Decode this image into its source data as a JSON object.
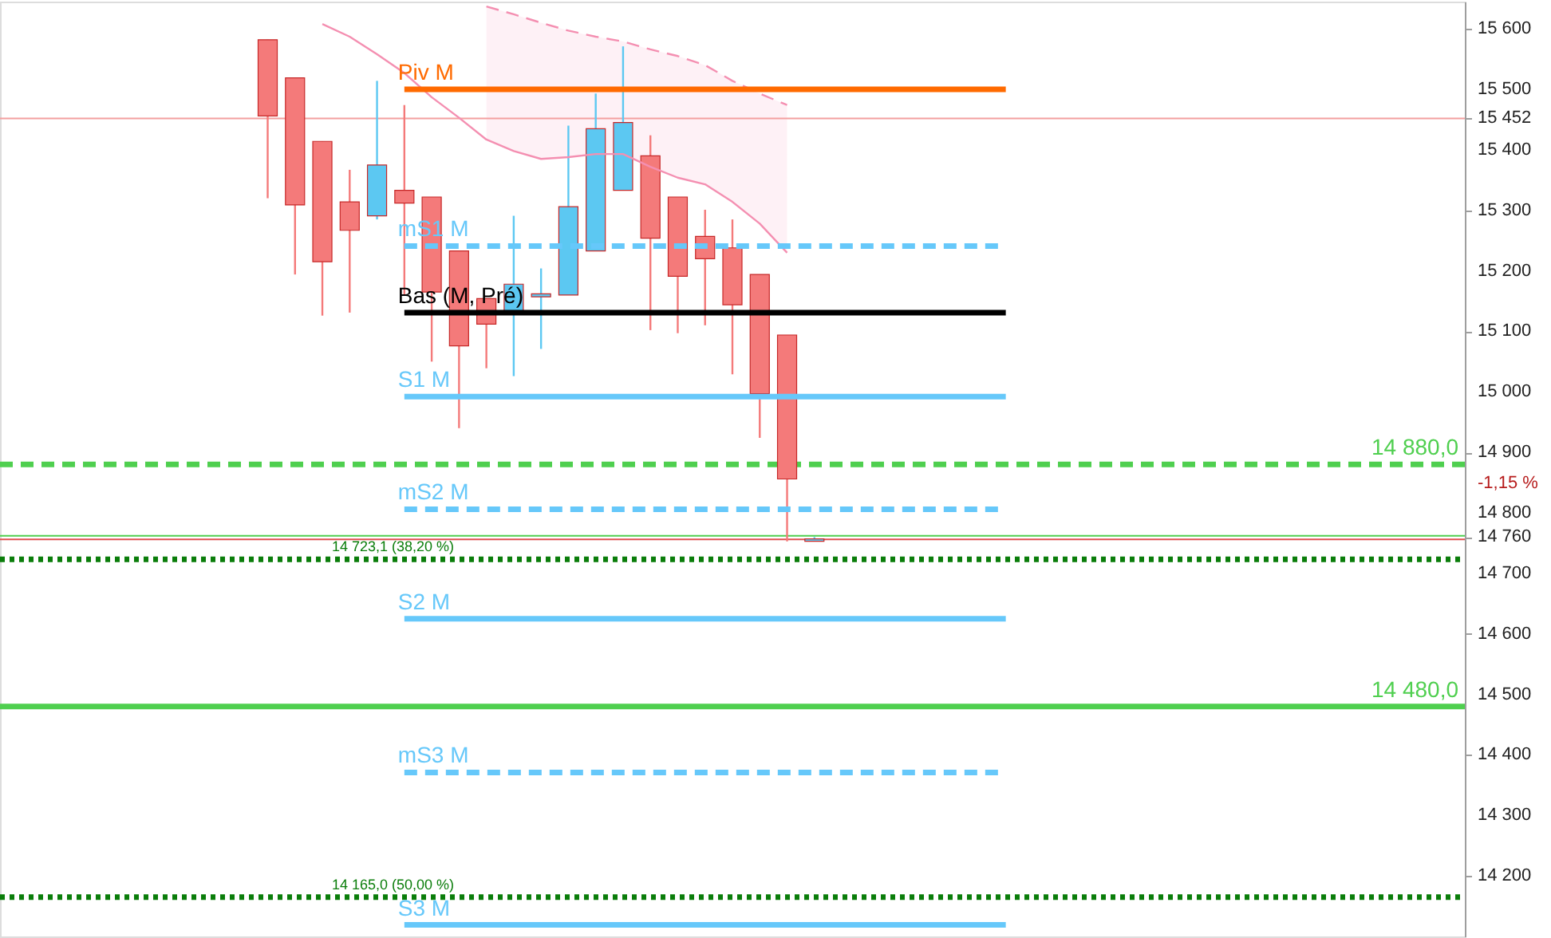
{
  "chart_data": {
    "type": "candlestick",
    "categories": [
      null,
      null,
      null,
      null,
      null,
      null,
      null,
      null,
      null,
      null,
      null,
      null,
      null,
      null,
      null,
      null,
      null,
      null,
      null,
      null,
      null,
      null,
      null,
      null,
      null,
      null,
      null,
      null,
      null,
      null,
      null,
      null,
      null,
      null,
      null,
      null,
      null,
      null,
      null,
      null,
      null,
      null,
      null,
      null,
      null,
      null,
      null,
      null,
      null,
      null,
      null,
      null,
      null
    ],
    "ohlc": [
      null,
      null,
      null,
      null,
      null,
      null,
      null,
      null,
      null,
      [
        15582,
        15582,
        15320,
        15456
      ],
      [
        15519,
        15519,
        15194,
        15309
      ],
      [
        15414,
        15414,
        15126,
        15215
      ],
      [
        15314,
        15367,
        15131,
        15267
      ],
      [
        15291,
        15514,
        15285,
        15375
      ],
      [
        15333,
        15474,
        15160,
        15312
      ],
      [
        15322,
        15322,
        15050,
        15165
      ],
      [
        15233,
        15233,
        14940,
        15076
      ],
      [
        15154,
        15154,
        15039,
        15112
      ],
      [
        15133,
        15291,
        15026,
        15178
      ],
      [
        15157,
        15204,
        15071,
        15162
      ],
      [
        15160,
        15440,
        15160,
        15306
      ],
      [
        15233,
        15493,
        15233,
        15435
      ],
      [
        15333,
        15571,
        15333,
        15445
      ],
      [
        15390,
        15424,
        15102,
        15254
      ],
      [
        15322,
        15322,
        15097,
        15191
      ],
      [
        15257,
        15301,
        15110,
        15220
      ],
      [
        15238,
        15285,
        15029,
        15144
      ],
      [
        15194,
        15194,
        14924,
        14997
      ],
      [
        15094,
        15094,
        14753,
        14856
      ],
      [
        14753,
        14760,
        14753,
        14757
      ],
      null,
      null,
      null,
      null,
      null,
      null,
      null,
      null,
      null,
      null,
      null,
      null,
      null,
      null,
      null,
      null,
      null,
      null,
      null,
      null,
      null,
      null,
      null
    ],
    "colors": [
      null,
      null,
      null,
      null,
      null,
      null,
      null,
      null,
      null,
      "#f47a7a",
      "#f47a7a",
      "#f47a7a",
      "#f47a7a",
      "#5cc8f2",
      "#f47a7a",
      "#f47a7a",
      "#f47a7a",
      "#f47a7a",
      "#5cc8f2",
      "#5cc8f2",
      "#5cc8f2",
      "#5cc8f2",
      "#5cc8f2",
      "#f47a7a",
      "#f47a7a",
      "#f47a7a",
      "#f47a7a",
      "#f47a7a",
      "#f47a7a",
      "#5cc8f2",
      null,
      null,
      null,
      null,
      null,
      null,
      null,
      null,
      null,
      null,
      null,
      null,
      null,
      null,
      null,
      null,
      null,
      null,
      null,
      null,
      null,
      null,
      null
    ],
    "series": [
      {
        "type": "line",
        "color": "#f48fb1",
        "line_style": "solid",
        "values": [
          null,
          null,
          null,
          null,
          null,
          null,
          null,
          null,
          null,
          null,
          null,
          15608,
          15587,
          15558,
          15527,
          15487,
          15453,
          15417,
          15398,
          15385,
          15388,
          15393,
          15393,
          15372,
          15354,
          15343,
          15314,
          15278,
          15230,
          null,
          null,
          null,
          null,
          null,
          null,
          null,
          null,
          null,
          null,
          null,
          null,
          null,
          null,
          null,
          null,
          null,
          null,
          null,
          null,
          null,
          null,
          null,
          null
        ]
      },
      {
        "type": "line",
        "color": "#f48fb1",
        "line_style": "dashed",
        "values": [
          null,
          null,
          null,
          null,
          null,
          null,
          null,
          null,
          null,
          null,
          null,
          null,
          null,
          null,
          null,
          null,
          null,
          15637,
          15624,
          15610,
          15597,
          15587,
          15579,
          15566,
          15555,
          15540,
          15514,
          15493,
          15474,
          null,
          null,
          null,
          null,
          null,
          null,
          null,
          null,
          null,
          null,
          null,
          null,
          null,
          null,
          null,
          null,
          null,
          null,
          null,
          null,
          null,
          null,
          null,
          null
        ],
        "lower": [
          null,
          null,
          null,
          null,
          null,
          null,
          null,
          null,
          null,
          null,
          null,
          null,
          null,
          null,
          null,
          null,
          null,
          15417,
          15398,
          15385,
          15388,
          15393,
          15393,
          15372,
          15354,
          15343,
          15314,
          15278,
          15230,
          null,
          null,
          null,
          null,
          null,
          null,
          null,
          null,
          null,
          null,
          null,
          null,
          null,
          null,
          null,
          null,
          null,
          null,
          null,
          null,
          null,
          null,
          null,
          null
        ],
        "upper": [
          null,
          null,
          null,
          null,
          null,
          null,
          null,
          null,
          null,
          null,
          null,
          null,
          null,
          null,
          null,
          null,
          null,
          15637,
          15624,
          15610,
          15597,
          15587,
          15579,
          15566,
          15555,
          15540,
          15514,
          15493,
          15474,
          null,
          null,
          null,
          null,
          null,
          null,
          null,
          null,
          null,
          null,
          null,
          null,
          null,
          null,
          null,
          null,
          null,
          null,
          null,
          null,
          null,
          null,
          null,
          null
        ]
      },
      {
        "type": "line",
        "name": "Piv M",
        "color": "#ff6a00",
        "line_style": "solid",
        "values": [
          null,
          null,
          null,
          null,
          null,
          null,
          null,
          null,
          null,
          null,
          null,
          null,
          null,
          null,
          15500,
          15500,
          15500,
          15500,
          15500,
          15500,
          15500,
          15500,
          15500,
          15500,
          15500,
          15500,
          15500,
          15500,
          15500,
          15500,
          15500,
          15500,
          15500,
          15500,
          15500,
          15500,
          15500,
          null,
          null,
          null,
          null,
          null,
          null,
          null,
          null,
          null,
          null,
          null,
          null,
          null,
          null,
          null,
          null
        ]
      },
      {
        "type": "line",
        "name": "mS1 M",
        "color": "#66c8fa",
        "line_style": "dashed",
        "values": [
          null,
          null,
          null,
          null,
          null,
          null,
          null,
          null,
          null,
          null,
          null,
          null,
          null,
          null,
          15241,
          15241,
          15241,
          15241,
          15241,
          15241,
          15241,
          15241,
          15241,
          15241,
          15241,
          15241,
          15241,
          15241,
          15241,
          15241,
          15241,
          15241,
          15241,
          15241,
          15241,
          15241,
          15241,
          null,
          null,
          null,
          null,
          null,
          null,
          null,
          null,
          null,
          null,
          null,
          null,
          null,
          null,
          null,
          null
        ]
      },
      {
        "type": "line",
        "name": "Bas (M, Pré)",
        "color": "#000000",
        "line_style": "solid",
        "values": [
          null,
          null,
          null,
          null,
          null,
          null,
          null,
          null,
          null,
          null,
          null,
          null,
          null,
          null,
          15131,
          15131,
          15131,
          15131,
          15131,
          15131,
          15131,
          15131,
          15131,
          15131,
          15131,
          15131,
          15131,
          15131,
          15131,
          15131,
          15131,
          15131,
          15131,
          15131,
          15131,
          15131,
          15131,
          null,
          null,
          null,
          null,
          null,
          null,
          null,
          null,
          null,
          null,
          null,
          null,
          null,
          null,
          null,
          null
        ]
      },
      {
        "type": "line",
        "name": "S1 M",
        "color": "#66c8fa",
        "line_style": "solid",
        "values": [
          null,
          null,
          null,
          null,
          null,
          null,
          null,
          null,
          null,
          null,
          null,
          null,
          null,
          null,
          14992,
          14992,
          14992,
          14992,
          14992,
          14992,
          14992,
          14992,
          14992,
          14992,
          14992,
          14992,
          14992,
          14992,
          14992,
          14992,
          14992,
          14992,
          14992,
          14992,
          14992,
          14992,
          14992,
          null,
          null,
          null,
          null,
          null,
          null,
          null,
          null,
          null,
          null,
          null,
          null,
          null,
          null,
          null,
          null
        ]
      },
      {
        "type": "line",
        "name": "mS2 M",
        "color": "#66c8fa",
        "line_style": "dashed",
        "values": [
          null,
          null,
          null,
          null,
          null,
          null,
          null,
          null,
          null,
          null,
          null,
          null,
          null,
          null,
          14806,
          14806,
          14806,
          14806,
          14806,
          14806,
          14806,
          14806,
          14806,
          14806,
          14806,
          14806,
          14806,
          14806,
          14806,
          14806,
          14806,
          14806,
          14806,
          14806,
          14806,
          14806,
          14806,
          null,
          null,
          null,
          null,
          null,
          null,
          null,
          null,
          null,
          null,
          null,
          null,
          null,
          null,
          null,
          null
        ]
      },
      {
        "type": "line",
        "name": "S2 M",
        "color": "#66c8fa",
        "line_style": "solid",
        "values": [
          null,
          null,
          null,
          null,
          null,
          null,
          null,
          null,
          null,
          null,
          null,
          null,
          null,
          null,
          14625,
          14625,
          14625,
          14625,
          14625,
          14625,
          14625,
          14625,
          14625,
          14625,
          14625,
          14625,
          14625,
          14625,
          14625,
          14625,
          14625,
          14625,
          14625,
          14625,
          14625,
          14625,
          14625,
          null,
          null,
          null,
          null,
          null,
          null,
          null,
          null,
          null,
          null,
          null,
          null,
          null,
          null,
          null,
          null
        ]
      },
      {
        "type": "line",
        "name": "mS3 M",
        "color": "#66c8fa",
        "line_style": "dashed",
        "values": [
          null,
          null,
          null,
          null,
          null,
          null,
          null,
          null,
          null,
          null,
          null,
          null,
          null,
          null,
          14371,
          14371,
          14371,
          14371,
          14371,
          14371,
          14371,
          14371,
          14371,
          14371,
          14371,
          14371,
          14371,
          14371,
          14371,
          14371,
          14371,
          14371,
          14371,
          14371,
          14371,
          14371,
          14371,
          null,
          null,
          null,
          null,
          null,
          null,
          null,
          null,
          null,
          null,
          null,
          null,
          null,
          null,
          null,
          null
        ]
      },
      {
        "type": "line",
        "name": "S3 M",
        "color": "#66c8fa",
        "line_style": "solid",
        "values": [
          null,
          null,
          null,
          null,
          null,
          null,
          null,
          null,
          null,
          null,
          null,
          null,
          null,
          null,
          14119,
          14119,
          14119,
          14119,
          14119,
          14119,
          14119,
          14119,
          14119,
          14119,
          14119,
          14119,
          14119,
          14119,
          14119,
          14119,
          14119,
          14119,
          14119,
          14119,
          14119,
          14119,
          14119,
          null,
          null,
          null,
          null,
          null,
          null,
          null,
          null,
          null,
          null,
          null,
          null,
          null,
          null,
          null,
          null
        ]
      }
    ],
    "ref_lines": [
      {
        "axis": "y",
        "value": 14880,
        "label": "14 880,0",
        "color": "#4fcf4f",
        "line_style": "dashed"
      },
      {
        "axis": "y",
        "value": 14723.1,
        "label": "14 723,1 (38,20 %)",
        "color": "#0a7d0a",
        "line_style": "dotted"
      },
      {
        "axis": "y",
        "value": 14480,
        "label": "14 480,0",
        "color": "#4fcf4f",
        "line_style": "solid"
      },
      {
        "axis": "y",
        "value": 14165,
        "label": "14 165,0 (50,00 %)",
        "color": "#0a7d0a",
        "line_style": "dotted"
      },
      {
        "axis": "y",
        "value": 15452,
        "color": "#f4a0a0",
        "line_style": "solid"
      },
      {
        "axis": "y",
        "value": 14762,
        "color": "#4fcf4f",
        "line_style": "solid"
      },
      {
        "axis": "y",
        "value": 14756,
        "color": "#e05050",
        "line_style": "solid"
      }
    ],
    "annotations": [
      "-1,15 %"
    ],
    "ylim": [
      14100,
      15645
    ],
    "yticks": [
      {
        "value": 14200,
        "label": "14 200"
      },
      {
        "value": 14300,
        "label": "14 300"
      },
      {
        "value": 14400,
        "label": "14 400"
      },
      {
        "value": 14500,
        "label": "14 500"
      },
      {
        "value": 14600,
        "label": "14 600"
      },
      {
        "value": 14700,
        "label": "14 700"
      },
      {
        "value": 14760,
        "label": "14 760"
      },
      {
        "value": 14800,
        "label": "14 800"
      },
      {
        "value": 14900,
        "label": "14 900"
      },
      {
        "value": 15000,
        "label": "15 000"
      },
      {
        "value": 15100,
        "label": "15 100"
      },
      {
        "value": 15200,
        "label": "15 200"
      },
      {
        "value": 15300,
        "label": "15 300"
      },
      {
        "value": 15400,
        "label": "15 400"
      },
      {
        "value": 15452,
        "label": "15 452"
      },
      {
        "value": 15500,
        "label": "15 500"
      },
      {
        "value": 15600,
        "label": "15 600"
      }
    ],
    "tick_labels": "y",
    "grid": false
  }
}
